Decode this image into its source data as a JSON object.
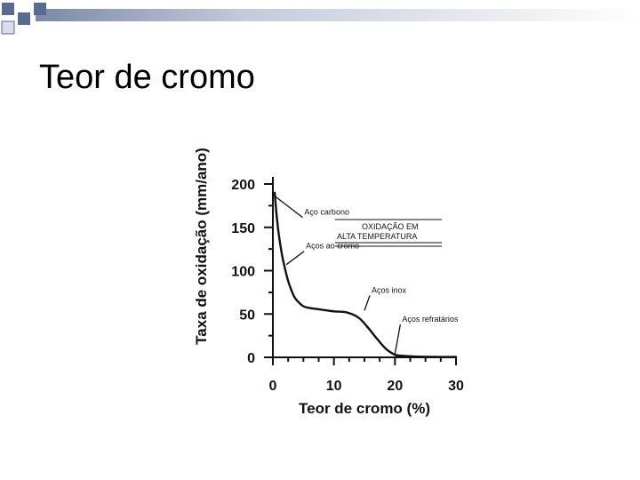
{
  "slide": {
    "title": "Teor de cromo"
  },
  "colors": {
    "deco_dark": "#5a6b90",
    "deco_light": "#d9dee9",
    "ink": "#111111"
  },
  "chart_data": {
    "type": "line",
    "xlabel": "Teor de cromo (%)",
    "ylabel": "Taxa de oxidação (mm/ano)",
    "xlim": [
      0,
      30
    ],
    "ylim": [
      0,
      200
    ],
    "xticks": [
      0,
      10,
      20,
      30
    ],
    "yticks": [
      0,
      50,
      100,
      150,
      200
    ],
    "grid": false,
    "series": [
      {
        "x": [
          0.3,
          0.6,
          1.0,
          1.5,
          2.0,
          2.5,
          3.0,
          3.5,
          4.0,
          5.0,
          6.0,
          8.0,
          10.0,
          12.0,
          14.0,
          15.5,
          17.0,
          18.5,
          20.0,
          21.0,
          23.0,
          26.0,
          30.0
        ],
        "y": [
          190,
          165,
          140,
          118,
          102,
          88,
          78,
          70,
          65,
          59,
          57,
          55,
          53,
          52,
          46,
          35,
          22,
          10,
          3,
          2,
          1,
          0.5,
          0.5
        ]
      }
    ],
    "annotations": [
      {
        "text": "Aço carbono",
        "x": 0.5,
        "y": 185
      },
      {
        "text": "Aços ao cromo",
        "x": 2.2,
        "y": 107
      },
      {
        "text": "Aços inox",
        "x": 15.0,
        "y": 54
      },
      {
        "text": "Aços refratários",
        "x": 20.0,
        "y": 4
      }
    ],
    "boxed_label": [
      "OXIDAÇÃO EM",
      "ALTA TEMPERATURA"
    ]
  }
}
